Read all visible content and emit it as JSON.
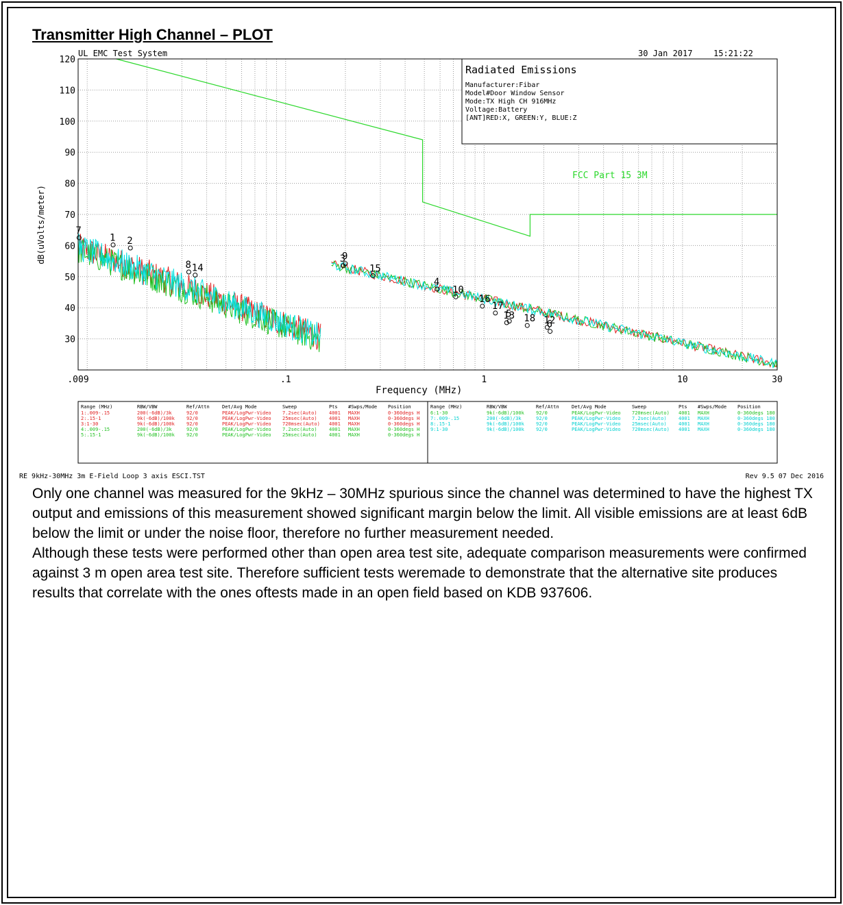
{
  "page": {
    "heading": "Transmitter High Channel – PLOT",
    "paragraphs": [
      "Only one channel was measured for the 9kHz – 30MHz spurious since the channel was determined to have the highest TX output and emissions of this measurement showed significant margin below the limit. All visible emissions are at least 6dB below the limit or under the noise floor, therefore no further measurement needed.",
      "Although these tests were performed other than open area test site, adequate comparison measurements were confirmed against 3 m open area test site. Therefore sufficient tests weremade to demonstrate that the alternative site produces results that correlate with the ones oftests made in an open field based on KDB 937606."
    ]
  },
  "chart_data": {
    "type": "line",
    "header_left": "UL EMC Test System",
    "header_date": "30 Jan 2017",
    "header_time": "15:21:22",
    "info_box": {
      "title": "Radiated Emissions",
      "lines": [
        "Manufacturer:Fibar",
        "Model#Door Window Sensor",
        "Mode:TX High CH 916MHz",
        "Voltage:Battery",
        "[ANT]RED:X, GREEN:Y, BLUE:Z"
      ]
    },
    "xlabel": "Frequency (MHz)",
    "ylabel": "dB(uVolts/meter)",
    "x_scale": "log",
    "xlim": [
      0.009,
      30
    ],
    "ylim": [
      20,
      120
    ],
    "x_tick_labels": [
      {
        "value": 0.009,
        "label": ".009"
      },
      {
        "value": 0.1,
        "label": ".1"
      },
      {
        "value": 1,
        "label": "1"
      },
      {
        "value": 10,
        "label": "10"
      },
      {
        "value": 30,
        "label": "30"
      }
    ],
    "y_ticks": [
      30,
      40,
      50,
      60,
      70,
      80,
      90,
      100,
      110,
      120
    ],
    "grid": true,
    "limit_line": {
      "name": "FCC Part 15 3M",
      "color": "#2bd82b",
      "points": [
        [
          0.014,
          120
        ],
        [
          0.49,
          94
        ],
        [
          0.49,
          74
        ],
        [
          1.705,
          63
        ],
        [
          1.705,
          70
        ],
        [
          30,
          70
        ]
      ]
    },
    "series": [
      {
        "color": "#e02020",
        "segments": [
          {
            "x": [
              0.009,
              0.15
            ],
            "y": [
              60,
              31
            ]
          },
          {
            "x": [
              0.17,
              30
            ],
            "y": [
              54,
              22
            ]
          }
        ]
      },
      {
        "color": "#20c020",
        "segments": [
          {
            "x": [
              0.009,
              0.15
            ],
            "y": [
              59,
              30
            ]
          },
          {
            "x": [
              0.17,
              30
            ],
            "y": [
              54,
              22
            ]
          }
        ]
      },
      {
        "color": "#00e0e0",
        "segments": [
          {
            "x": [
              0.009,
              0.15
            ],
            "y": [
              60,
              31
            ]
          },
          {
            "x": [
              0.17,
              30
            ],
            "y": [
              54,
              22
            ]
          }
        ]
      }
    ],
    "markers": [
      {
        "label": "1",
        "x": 0.0135,
        "y": 60.2
      },
      {
        "label": "2",
        "x": 0.0165,
        "y": 59.2
      },
      {
        "label": "7",
        "x": 0.0091,
        "y": 62.5
      },
      {
        "label": "8",
        "x": 0.0325,
        "y": 51.5
      },
      {
        "label": "14",
        "x": 0.035,
        "y": 50.5
      },
      {
        "label": "3",
        "x": 0.195,
        "y": 53.5
      },
      {
        "label": "9",
        "x": 0.2,
        "y": 54.2
      },
      {
        "label": "15",
        "x": 0.275,
        "y": 50.3
      },
      {
        "label": "4",
        "x": 0.58,
        "y": 46
      },
      {
        "label": "10",
        "x": 0.72,
        "y": 43.5
      },
      {
        "label": "16",
        "x": 0.98,
        "y": 40.5
      },
      {
        "label": "17",
        "x": 1.14,
        "y": 38.3
      },
      {
        "label": "13",
        "x": 1.3,
        "y": 35.2
      },
      {
        "label": "5",
        "x": 1.34,
        "y": 35.7
      },
      {
        "label": "18",
        "x": 1.65,
        "y": 34.3
      },
      {
        "label": "12",
        "x": 2.08,
        "y": 33.7
      },
      {
        "label": "6",
        "x": 2.15,
        "y": 32.4
      }
    ],
    "settings_table": {
      "columns": [
        "Range (MHz)",
        "RBW/VBW",
        "Ref/Attn",
        "Det/Avg Mode",
        "Sweep",
        "Pts",
        "#Swps/Mode",
        "Position"
      ],
      "left_rows": [
        {
          "color": "#e02020",
          "cells": [
            "1:.009-.15",
            "200(-6dB)/3k",
            "92/0",
            "PEAK/LogPwr-Video",
            "7.2sec(Auto)",
            "4001",
            "MAXH",
            "0-360degs H"
          ]
        },
        {
          "color": "#e02020",
          "cells": [
            "2:.15-1",
            "9k(-6dB)/100k",
            "92/0",
            "PEAK/LogPwr-Video",
            "25msec(Auto)",
            "4001",
            "MAXH",
            "0-360degs H"
          ]
        },
        {
          "color": "#e02020",
          "cells": [
            "3:1-30",
            "9k(-6dB)/100k",
            "92/0",
            "PEAK/LogPwr-Video",
            "720msec(Auto)",
            "4001",
            "MAXH",
            "0-360degs H"
          ]
        },
        {
          "color": "#20c020",
          "cells": [
            "4:.009-.15",
            "200(-6dB)/3k",
            "92/0",
            "PEAK/LogPwr-Video",
            "7.2sec(Auto)",
            "4001",
            "MAXH",
            "0-360degs H"
          ]
        },
        {
          "color": "#20c020",
          "cells": [
            "5:.15-1",
            "9k(-6dB)/100k",
            "92/0",
            "PEAK/LogPwr-Video",
            "25msec(Auto)",
            "4001",
            "MAXH",
            "0-360degs H"
          ]
        }
      ],
      "right_rows": [
        {
          "color": "#20c020",
          "cells": [
            "6:1-30",
            "9k(-6dB)/100k",
            "92/0",
            "PEAK/LogPwr-Video",
            "720msec(Auto)",
            "4001",
            "MAXH",
            "0-360degs 180"
          ]
        },
        {
          "color": "#00d0d0",
          "cells": [
            "7:.009-.15",
            "200(-6dB)/3k",
            "92/0",
            "PEAK/LogPwr-Video",
            "7.2sec(Auto)",
            "4001",
            "MAXH",
            "0-360degs 180"
          ]
        },
        {
          "color": "#00d0d0",
          "cells": [
            "8:.15-1",
            "9k(-6dB)/100k",
            "92/0",
            "PEAK/LogPwr-Video",
            "25msec(Auto)",
            "4001",
            "MAXH",
            "0-360degs 180"
          ]
        },
        {
          "color": "#00d0d0",
          "cells": [
            "9:1-30",
            "9k(-6dB)/100k",
            "92/0",
            "PEAK/LogPwr-Video",
            "720msec(Auto)",
            "4001",
            "MAXH",
            "0-360degs 180"
          ]
        }
      ]
    },
    "footer_left": "RE 9kHz-30MHz 3m E-Field Loop 3 axis ESCI.TST",
    "footer_right": "Rev 9.5 07 Dec 2016"
  }
}
